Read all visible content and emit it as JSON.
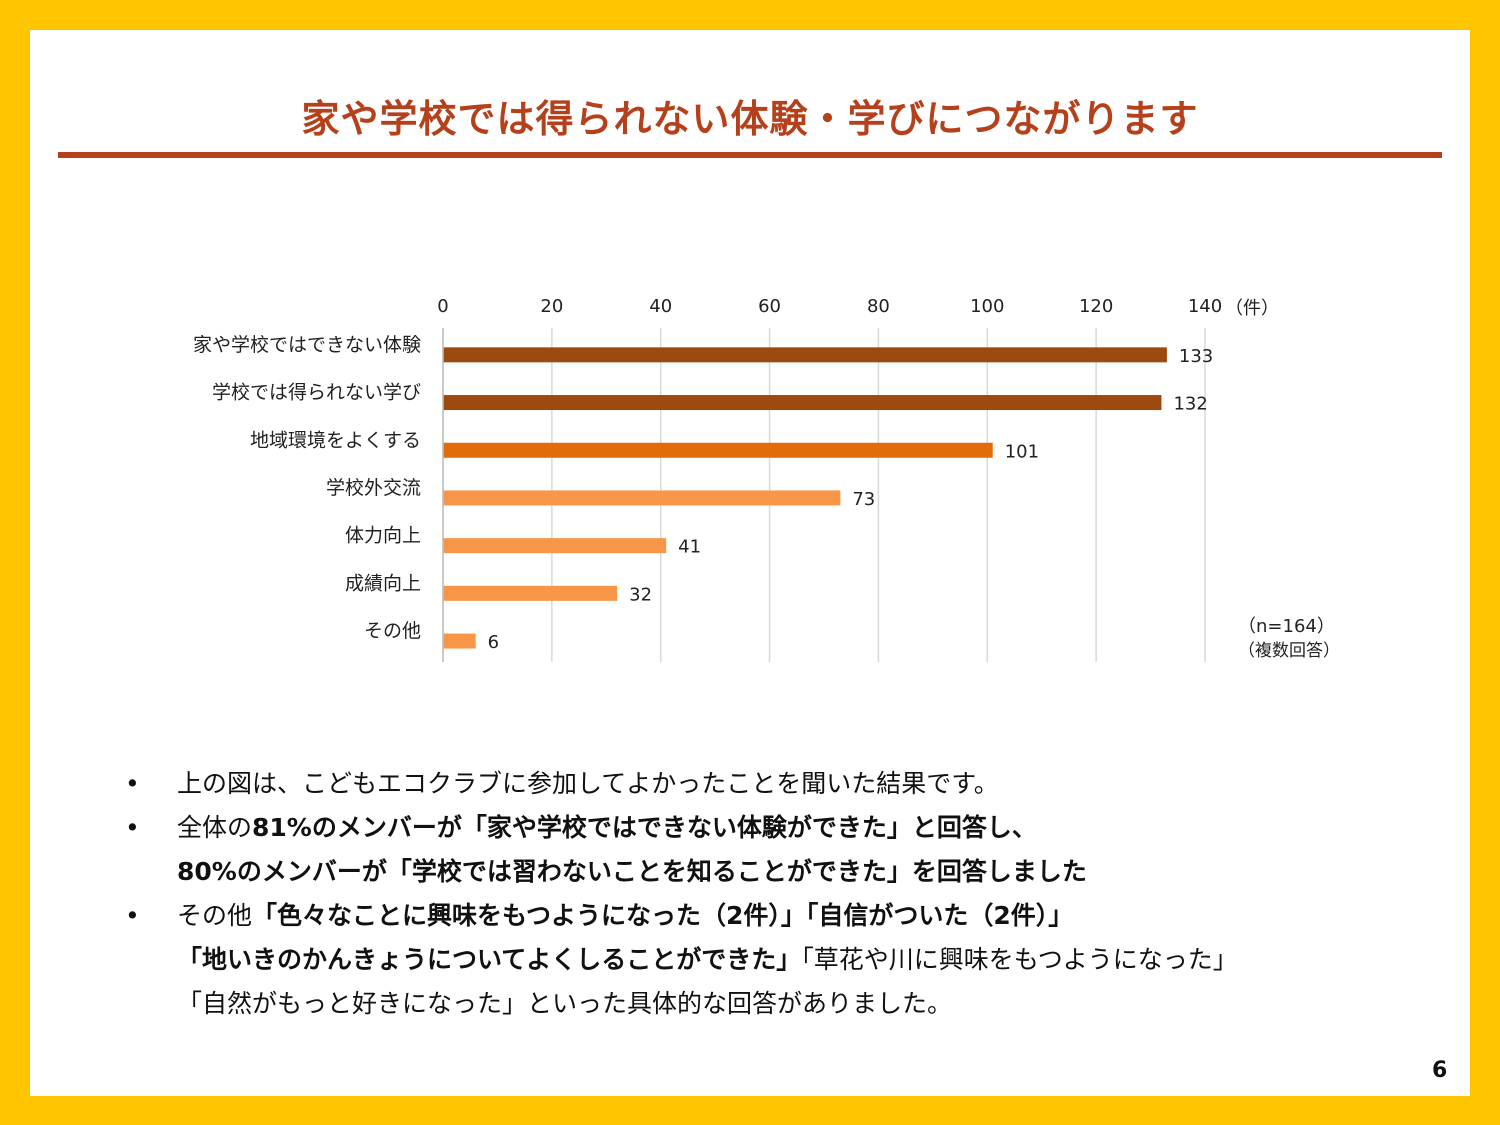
{
  "title": "家や学校では得られない体験・学びにつながります",
  "page_number": "6",
  "colors": {
    "frame": "#FFC600",
    "title": "#B5401C",
    "bar_dark": "#9C4A0E",
    "bar_mid": "#E36C0A",
    "bar_light": "#F79646"
  },
  "chart_data": {
    "type": "bar",
    "orientation": "horizontal",
    "categories": [
      "家や学校ではできない体験",
      "学校では得られない学び",
      "地域環境をよくする",
      "学校外交流",
      "体力向上",
      "成績向上",
      "その他"
    ],
    "values": [
      133,
      132,
      101,
      73,
      41,
      32,
      6
    ],
    "bar_colors": [
      "#9C4A0E",
      "#9C4A0E",
      "#E36C0A",
      "#F79646",
      "#F79646",
      "#F79646",
      "#F79646"
    ],
    "xlim": [
      0,
      140
    ],
    "x_ticks": [
      0,
      20,
      40,
      60,
      80,
      100,
      120,
      140
    ],
    "x_unit": "（件）",
    "note_n": "（n=164）",
    "note_multi": "（複数回答）",
    "grid": "vertical"
  },
  "bullets": [
    {
      "marker": "•",
      "lines": [
        [
          {
            "t": "上の図は、こどもエコクラブに参加してよかったことを聞いた結果です。",
            "bold": false
          }
        ]
      ]
    },
    {
      "marker": "•",
      "lines": [
        [
          {
            "t": "全体の",
            "bold": false
          },
          {
            "t": "81%のメンバーが「家や学校ではできない体験ができた」と回答し、",
            "bold": true
          }
        ],
        [
          {
            "t": "80%のメンバーが「学校では習わないことを知ることができた」を回答しました",
            "bold": true
          }
        ]
      ]
    },
    {
      "marker": "•",
      "lines": [
        [
          {
            "t": "その他",
            "bold": false
          },
          {
            "t": "「色々なことに興味をもつようになった（2件）」「自信がついた（2件）」",
            "bold": true
          }
        ],
        [
          {
            "t": "「地いきのかんきょうについてよくしることができた」",
            "bold": true
          },
          {
            "t": "「草花や川に興味をもつようになった」",
            "bold": false
          }
        ],
        [
          {
            "t": "「自然がもっと好きになった」といった具体的な回答がありました。",
            "bold": false
          }
        ]
      ]
    }
  ]
}
